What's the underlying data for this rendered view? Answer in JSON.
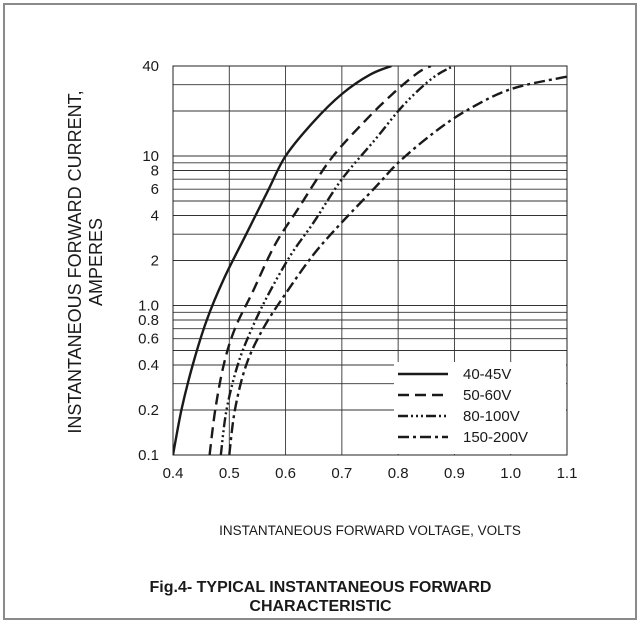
{
  "chart_data": {
    "type": "line",
    "title": "Fig.4- TYPICAL INSTANTANEOUS FORWARD CHARACTERISTIC",
    "title_lines": [
      "Fig.4- TYPICAL INSTANTANEOUS FORWARD",
      "CHARACTERISTIC"
    ],
    "xlabel": "INSTANTANEOUS FORWARD VOLTAGE, VOLTS",
    "ylabel_lines": [
      "INSTANTANEOUS FORWARD CURRENT,",
      "AMPERES"
    ],
    "x_scale": "linear",
    "y_scale": "log",
    "xlim": [
      0.4,
      1.1
    ],
    "ylim": [
      0.1,
      40
    ],
    "grid": true,
    "legend_position": "bottom-right",
    "x_ticks": [
      {
        "value": 0.4,
        "label": "0.4"
      },
      {
        "value": 0.5,
        "label": "0.5"
      },
      {
        "value": 0.6,
        "label": "0.6"
      },
      {
        "value": 0.7,
        "label": "0.7"
      },
      {
        "value": 0.8,
        "label": "0.8"
      },
      {
        "value": 0.9,
        "label": "0.9"
      },
      {
        "value": 1.0,
        "label": "1.0"
      },
      {
        "value": 1.1,
        "label": "1.1"
      }
    ],
    "y_ticks": [
      {
        "value": 0.1,
        "label": "0.1"
      },
      {
        "value": 0.2,
        "label": "0.2"
      },
      {
        "value": 0.4,
        "label": "0.4"
      },
      {
        "value": 0.6,
        "label": "0.6"
      },
      {
        "value": 0.8,
        "label": "0.8"
      },
      {
        "value": 1.0,
        "label": "1.0"
      },
      {
        "value": 2,
        "label": "2"
      },
      {
        "value": 4,
        "label": "4"
      },
      {
        "value": 6,
        "label": "6"
      },
      {
        "value": 8,
        "label": "8"
      },
      {
        "value": 10,
        "label": "10"
      },
      {
        "value": 40,
        "label": "40"
      }
    ],
    "y_grid_values": [
      0.1,
      0.2,
      0.3,
      0.4,
      0.5,
      0.6,
      0.7,
      0.8,
      0.9,
      1,
      2,
      3,
      4,
      5,
      6,
      7,
      8,
      9,
      10,
      20,
      30,
      40
    ],
    "series": [
      {
        "name": "40-45V",
        "dash": "solid",
        "x": [
          0.4,
          0.415,
          0.435,
          0.46,
          0.49,
          0.53,
          0.57,
          0.6,
          0.65,
          0.7,
          0.75,
          0.788
        ],
        "y": [
          0.1,
          0.2,
          0.4,
          0.8,
          1.5,
          3.0,
          6.0,
          10,
          17,
          26,
          35,
          40
        ]
      },
      {
        "name": "50-60V",
        "dash": "dashed",
        "x": [
          0.465,
          0.475,
          0.49,
          0.51,
          0.54,
          0.58,
          0.62,
          0.68,
          0.74,
          0.79,
          0.835,
          0.858
        ],
        "y": [
          0.1,
          0.2,
          0.4,
          0.7,
          1.2,
          2.5,
          4.3,
          9.5,
          17,
          26,
          36,
          40
        ]
      },
      {
        "name": "80-100V",
        "dash": "dash-dot-dot",
        "x": [
          0.485,
          0.495,
          0.515,
          0.54,
          0.57,
          0.61,
          0.65,
          0.7,
          0.76,
          0.81,
          0.86,
          0.898
        ],
        "y": [
          0.1,
          0.2,
          0.4,
          0.7,
          1.2,
          2.2,
          3.6,
          7.0,
          13,
          22,
          33,
          40
        ]
      },
      {
        "name": "150-200V",
        "dash": "dash-dot",
        "x": [
          0.5,
          0.51,
          0.53,
          0.56,
          0.6,
          0.65,
          0.7,
          0.76,
          0.8,
          0.86,
          0.92,
          1.0,
          1.1
        ],
        "y": [
          0.1,
          0.2,
          0.4,
          0.7,
          1.2,
          2.2,
          3.6,
          6.2,
          9.0,
          14,
          20,
          28,
          34
        ]
      }
    ]
  }
}
